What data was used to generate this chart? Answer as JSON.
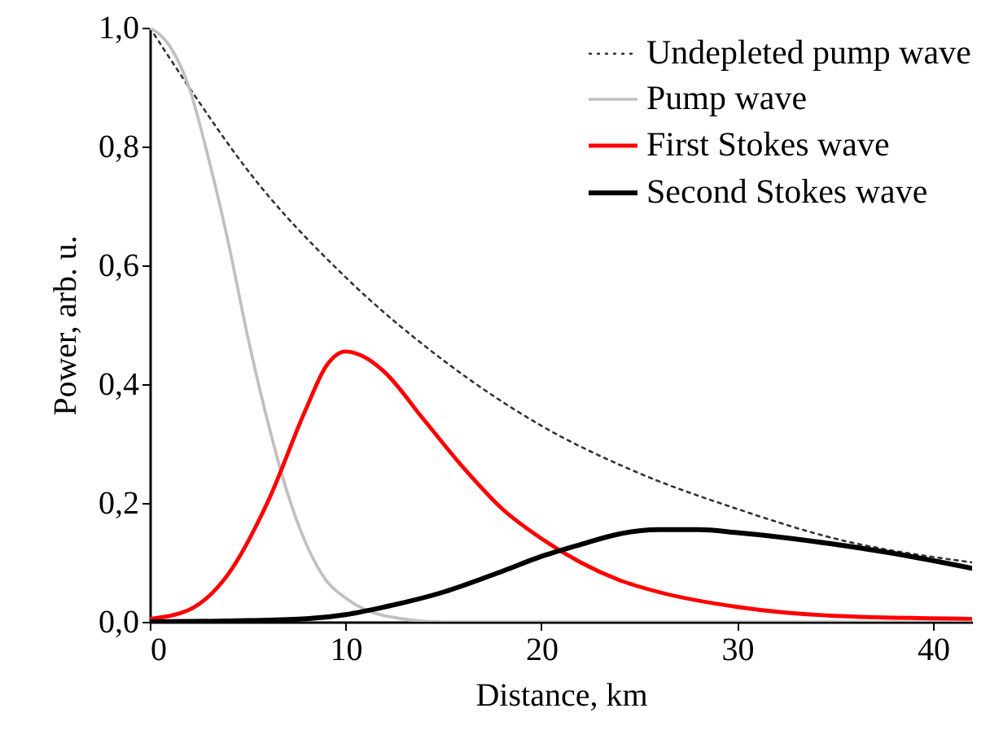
{
  "chart_data": {
    "type": "line",
    "xlabel": "Distance, km",
    "ylabel": "Power, arb. u.",
    "xlim": [
      0,
      42
    ],
    "ylim": [
      0,
      1.0
    ],
    "xticks": [
      0,
      10,
      20,
      30,
      40
    ],
    "yticks": [
      {
        "value": 0,
        "label": "0,0"
      },
      {
        "value": 0.2,
        "label": "0,2"
      },
      {
        "value": 0.4,
        "label": "0,4"
      },
      {
        "value": 0.6,
        "label": "0,6"
      },
      {
        "value": 0.8,
        "label": "0,8"
      },
      {
        "value": 1.0,
        "label": "1,0"
      }
    ],
    "legend": "top right",
    "grid": false,
    "series": [
      {
        "name": "Undepleted pump wave",
        "color": "#333333",
        "line_style": "dotted",
        "x": [
          0,
          2,
          5,
          10,
          15,
          20,
          25,
          30,
          35,
          42
        ],
        "values": [
          1.0,
          0.9,
          0.76,
          0.58,
          0.44,
          0.33,
          0.25,
          0.19,
          0.14,
          0.1
        ]
      },
      {
        "name": "Pump wave",
        "color": "#c0c0c0",
        "line_style": "solid",
        "x": [
          0,
          1,
          2,
          3,
          4,
          5,
          6,
          7,
          8,
          9,
          10,
          12,
          15,
          20,
          42
        ],
        "values": [
          1.0,
          0.97,
          0.9,
          0.78,
          0.64,
          0.48,
          0.34,
          0.22,
          0.13,
          0.07,
          0.04,
          0.01,
          0.0,
          0.0,
          0.0
        ]
      },
      {
        "name": "First Stokes wave",
        "color": "#ff0000",
        "line_style": "solid",
        "x": [
          0,
          2,
          4,
          6,
          8,
          9,
          10,
          11,
          12,
          14,
          16,
          18,
          20,
          22,
          24,
          26,
          30,
          35,
          42
        ],
        "values": [
          0.005,
          0.02,
          0.08,
          0.2,
          0.36,
          0.43,
          0.455,
          0.445,
          0.42,
          0.34,
          0.26,
          0.19,
          0.14,
          0.1,
          0.07,
          0.05,
          0.025,
          0.01,
          0.005
        ]
      },
      {
        "name": "Second Stokes wave",
        "color": "#000000",
        "line_style": "solid",
        "x": [
          0,
          5,
          8,
          10,
          12,
          15,
          18,
          20,
          22,
          24,
          26,
          28,
          30,
          34,
          38,
          42
        ],
        "values": [
          0.0,
          0.002,
          0.005,
          0.012,
          0.025,
          0.05,
          0.085,
          0.11,
          0.13,
          0.148,
          0.155,
          0.155,
          0.15,
          0.135,
          0.115,
          0.09
        ]
      }
    ]
  }
}
